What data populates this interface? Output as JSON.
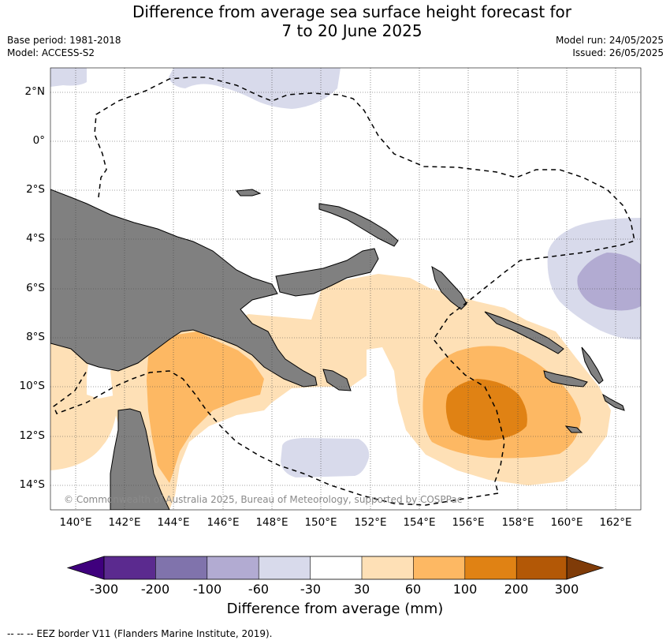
{
  "header": {
    "title_line1": "Difference from average sea surface height forecast for",
    "title_line2": "7 to 20 June 2025",
    "base_period": "Base period: 1981-2018",
    "model": "Model: ACCESS-S2",
    "model_run": "Model run: 24/05/2025",
    "issued": "Issued: 26/05/2025"
  },
  "map": {
    "lat_labels": [
      "2°N",
      "0°",
      "2°S",
      "4°S",
      "6°S",
      "8°S",
      "10°S",
      "12°S",
      "14°S"
    ],
    "lon_labels": [
      "140°E",
      "142°E",
      "144°E",
      "146°E",
      "148°E",
      "150°E",
      "152°E",
      "154°E",
      "156°E",
      "158°E",
      "160°E",
      "162°E"
    ],
    "land_color": "#808080",
    "copyright": "© Commonwealth of Australia 2025, Bureau of Meteorology, supported by COSPPac"
  },
  "colorbar": {
    "labels": [
      "-300",
      "-200",
      "-100",
      "-60",
      "-30",
      "30",
      "60",
      "100",
      "200",
      "300"
    ],
    "colors": [
      "#3f007d",
      "#5b2a8f",
      "#8073ac",
      "#b2abd2",
      "#d8daeb",
      "#ffffff",
      "#fee0b6",
      "#fdb863",
      "#e08214",
      "#b35806",
      "#7f3b08"
    ],
    "title": "Difference from average (mm)"
  },
  "footer": {
    "legend": "--  --  -- EEZ border V11 (Flanders Marine Institute, 2019)."
  }
}
